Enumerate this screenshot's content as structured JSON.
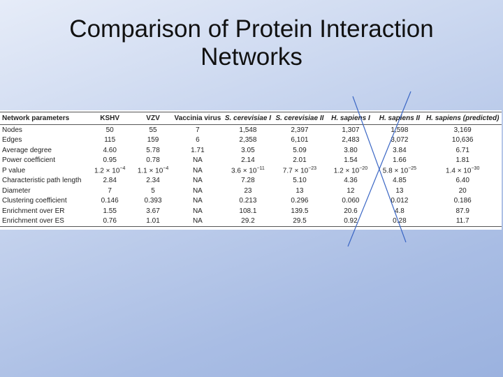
{
  "title": "Comparison of Protein Interaction Networks",
  "table": {
    "header": [
      "Network parameters",
      "KSHV",
      "VZV",
      "Vaccinia virus",
      "S. cerevisiae I",
      "S. cerevisiae II",
      "H. sapiens I",
      "H. sapiens II",
      "H. sapiens (predicted)"
    ],
    "rows": [
      [
        "Nodes",
        "50",
        "55",
        "7",
        "1,548",
        "2,397",
        "1,307",
        "1,598",
        "3,169"
      ],
      [
        "Edges",
        "115",
        "159",
        "6",
        "2,358",
        "6,101",
        "2,483",
        "3,072",
        "10,636"
      ],
      [
        "Average degree",
        "4.60",
        "5.78",
        "1.71",
        "3.05",
        "5.09",
        "3.80",
        "3.84",
        "6.71"
      ],
      [
        "Power coefficient",
        "0.95",
        "0.78",
        "NA",
        "2.14",
        "2.01",
        "1.54",
        "1.66",
        "1.81"
      ],
      [
        "P value",
        {
          "base": "1.2 × 10",
          "exp": "−4"
        },
        {
          "base": "1.1 × 10",
          "exp": "−4"
        },
        "NA",
        {
          "base": "3.6 × 10",
          "exp": "−11"
        },
        {
          "base": "7.7 × 10",
          "exp": "−23"
        },
        {
          "base": "1.2 × 10",
          "exp": "−20"
        },
        {
          "base": "5.8 × 10",
          "exp": "−25"
        },
        {
          "base": "1.4 × 10",
          "exp": "−30"
        }
      ],
      [
        "Characteristic path length",
        "2.84",
        "2.34",
        "NA",
        "7.28",
        "5.10",
        "4.36",
        "4.85",
        "6.40"
      ],
      [
        "Diameter",
        "7",
        "5",
        "NA",
        "23",
        "13",
        "12",
        "13",
        "20"
      ],
      [
        "Clustering coefficient",
        "0.146",
        "0.393",
        "NA",
        "0.213",
        "0.296",
        "0.060",
        "0.012",
        "0.186"
      ],
      [
        "Enrichment over ER",
        "1.55",
        "3.67",
        "NA",
        "108.1",
        "139.5",
        "20.6",
        "4.8",
        "87.9"
      ],
      [
        "Enrichment over ES",
        "0.76",
        "1.01",
        "NA",
        "29.2",
        "29.5",
        "0.92",
        "0.28",
        "11.7"
      ]
    ]
  }
}
